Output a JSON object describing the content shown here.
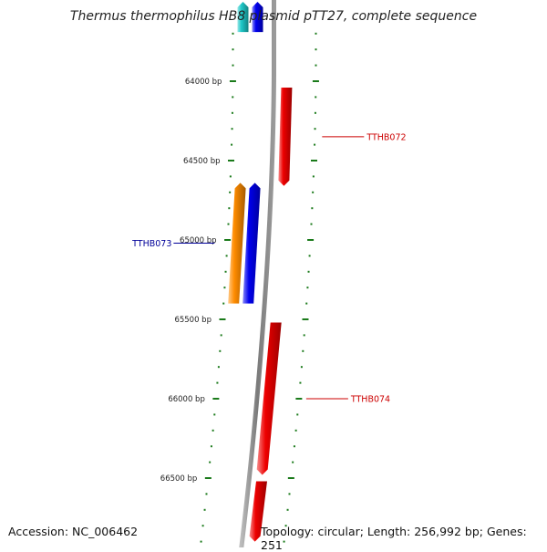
{
  "title": "Thermus thermophilus HB8 plasmid pTT27, complete sequence",
  "footer": {
    "accession": "Accession: NC_006462",
    "topology": "Topology: circular; Length: 256,992 bp; Genes: 251"
  },
  "scale": {
    "ticks": [
      {
        "bp": 64000,
        "label": "64000 bp"
      },
      {
        "bp": 64500,
        "label": "64500 bp"
      },
      {
        "bp": 65000,
        "label": "65000 bp"
      },
      {
        "bp": 65500,
        "label": "65500 bp"
      },
      {
        "bp": 66000,
        "label": "66000 bp"
      },
      {
        "bp": 66500,
        "label": "66500 bp"
      }
    ]
  },
  "genes": [
    {
      "name": "",
      "strand": "reverse",
      "start": 63500,
      "end": 63690,
      "color": "#0000ee"
    },
    {
      "name": "",
      "strand": "reverse",
      "start": 63500,
      "end": 63690,
      "color": "#1ec8c8"
    },
    {
      "name": "TTHB072",
      "strand": "forward",
      "start": 64040,
      "end": 64660,
      "color": "#ee0000"
    },
    {
      "name": "TTHB073",
      "strand": "reverse",
      "start": 64640,
      "end": 65400,
      "color": "#0000ee"
    },
    {
      "name": "",
      "strand": "reverse",
      "start": 64640,
      "end": 65400,
      "color": "#ff8c00"
    },
    {
      "name": "TTHB074",
      "strand": "forward",
      "start": 65520,
      "end": 66480,
      "color": "#ee0000"
    },
    {
      "name": "",
      "strand": "forward",
      "start": 66520,
      "end": 66900,
      "color": "#ee0000"
    }
  ],
  "colors": {
    "backbone": "#808080",
    "tick": "#1a7a1a",
    "label_forward": "#cc0000",
    "label_reverse": "#000099"
  }
}
